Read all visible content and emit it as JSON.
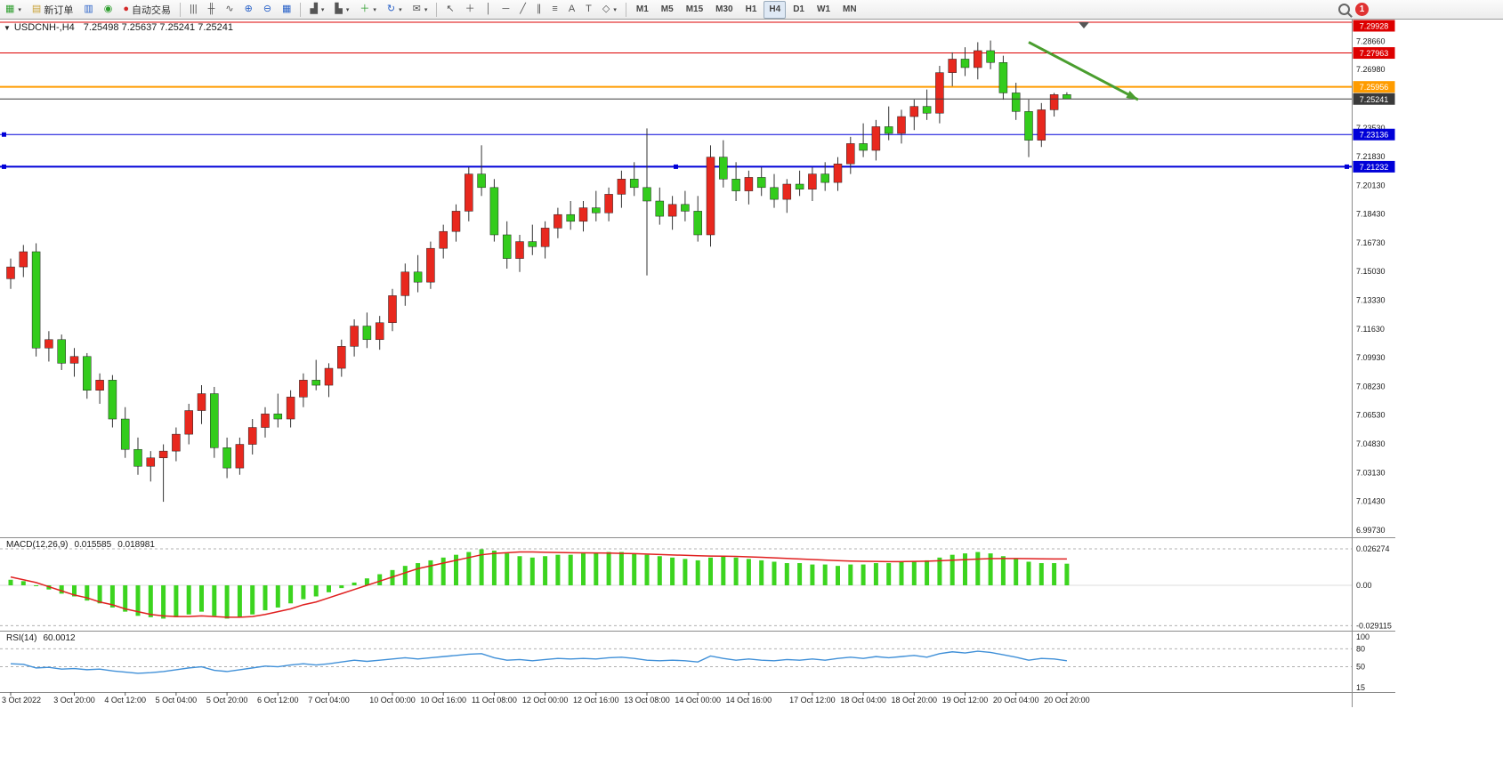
{
  "toolbar": {
    "new_order_label": "新订单",
    "auto_trading_label": "自动交易",
    "timeframes": [
      "M1",
      "M5",
      "M15",
      "M30",
      "H1",
      "H4",
      "D1",
      "W1",
      "MN"
    ],
    "active_timeframe": "H4",
    "notification_count": "1"
  },
  "chart": {
    "dropdown_glyph": "▼",
    "title": "USDCNH-,H4",
    "ohlc_text": "7.25498 7.25637 7.25241 7.25241"
  },
  "indicators": {
    "macd_label": "MACD(12,26,9)",
    "macd_value_main": "0.015585",
    "macd_value_signal": "0.018981",
    "rsi_label": "RSI(14)",
    "rsi_value": "60.0012"
  },
  "colors": {
    "up": "#e8281e",
    "down": "#33cc1c",
    "wick": "#333333",
    "macd_hist": "#3cd41f",
    "macd_signal": "#e02020",
    "rsi_line": "#4090d8",
    "arrow": "#4a9e2f",
    "line_red": "#dd0000",
    "line_orange": "#ff9c00",
    "line_blue": "#0000d8",
    "current_price": "#3a3a3a"
  },
  "chart_data": {
    "type": "candlestick",
    "symbol": "USDCNH-",
    "timeframe": "H4",
    "ohlc_current": {
      "open": 7.25498,
      "high": 7.25637,
      "low": 7.25241,
      "close": 7.25241
    },
    "ylim": [
      6.993,
      7.2994
    ],
    "candles": [
      [
        7.146,
        7.158,
        7.14,
        7.153
      ],
      [
        7.153,
        7.166,
        7.147,
        7.162
      ],
      [
        7.162,
        7.167,
        7.1,
        7.105
      ],
      [
        7.105,
        7.115,
        7.097,
        7.11
      ],
      [
        7.11,
        7.113,
        7.092,
        7.096
      ],
      [
        7.096,
        7.105,
        7.088,
        7.1
      ],
      [
        7.1,
        7.102,
        7.075,
        7.08
      ],
      [
        7.08,
        7.09,
        7.072,
        7.086
      ],
      [
        7.086,
        7.089,
        7.058,
        7.063
      ],
      [
        7.063,
        7.07,
        7.04,
        7.045
      ],
      [
        7.045,
        7.052,
        7.03,
        7.035
      ],
      [
        7.035,
        7.044,
        7.026,
        7.04
      ],
      [
        7.04,
        7.048,
        7.014,
        7.044
      ],
      [
        7.044,
        7.058,
        7.038,
        7.054
      ],
      [
        7.054,
        7.072,
        7.048,
        7.068
      ],
      [
        7.068,
        7.083,
        7.06,
        7.078
      ],
      [
        7.078,
        7.082,
        7.04,
        7.046
      ],
      [
        7.046,
        7.052,
        7.028,
        7.034
      ],
      [
        7.034,
        7.052,
        7.03,
        7.048
      ],
      [
        7.048,
        7.063,
        7.042,
        7.058
      ],
      [
        7.058,
        7.07,
        7.052,
        7.066
      ],
      [
        7.066,
        7.078,
        7.058,
        7.063
      ],
      [
        7.063,
        7.08,
        7.058,
        7.076
      ],
      [
        7.076,
        7.09,
        7.07,
        7.086
      ],
      [
        7.086,
        7.098,
        7.08,
        7.083
      ],
      [
        7.083,
        7.096,
        7.076,
        7.093
      ],
      [
        7.093,
        7.11,
        7.088,
        7.106
      ],
      [
        7.106,
        7.122,
        7.1,
        7.118
      ],
      [
        7.118,
        7.126,
        7.105,
        7.11
      ],
      [
        7.11,
        7.124,
        7.104,
        7.12
      ],
      [
        7.12,
        7.14,
        7.115,
        7.136
      ],
      [
        7.136,
        7.155,
        7.13,
        7.15
      ],
      [
        7.15,
        7.16,
        7.138,
        7.144
      ],
      [
        7.144,
        7.168,
        7.14,
        7.164
      ],
      [
        7.164,
        7.178,
        7.158,
        7.174
      ],
      [
        7.174,
        7.19,
        7.168,
        7.186
      ],
      [
        7.186,
        7.212,
        7.18,
        7.208
      ],
      [
        7.208,
        7.225,
        7.195,
        7.2
      ],
      [
        7.2,
        7.205,
        7.168,
        7.172
      ],
      [
        7.172,
        7.18,
        7.152,
        7.158
      ],
      [
        7.158,
        7.172,
        7.15,
        7.168
      ],
      [
        7.168,
        7.178,
        7.16,
        7.165
      ],
      [
        7.165,
        7.18,
        7.158,
        7.176
      ],
      [
        7.176,
        7.188,
        7.17,
        7.184
      ],
      [
        7.184,
        7.192,
        7.175,
        7.18
      ],
      [
        7.18,
        7.192,
        7.174,
        7.188
      ],
      [
        7.188,
        7.198,
        7.18,
        7.185
      ],
      [
        7.185,
        7.2,
        7.18,
        7.196
      ],
      [
        7.196,
        7.21,
        7.188,
        7.205
      ],
      [
        7.205,
        7.215,
        7.195,
        7.2
      ],
      [
        7.2,
        7.235,
        7.148,
        7.192
      ],
      [
        7.192,
        7.2,
        7.178,
        7.183
      ],
      [
        7.183,
        7.195,
        7.175,
        7.19
      ],
      [
        7.19,
        7.198,
        7.18,
        7.186
      ],
      [
        7.186,
        7.195,
        7.168,
        7.172
      ],
      [
        7.172,
        7.225,
        7.165,
        7.218
      ],
      [
        7.218,
        7.228,
        7.2,
        7.205
      ],
      [
        7.205,
        7.215,
        7.192,
        7.198
      ],
      [
        7.198,
        7.21,
        7.19,
        7.206
      ],
      [
        7.206,
        7.212,
        7.195,
        7.2
      ],
      [
        7.2,
        7.208,
        7.188,
        7.193
      ],
      [
        7.193,
        7.205,
        7.185,
        7.202
      ],
      [
        7.202,
        7.21,
        7.195,
        7.199
      ],
      [
        7.199,
        7.212,
        7.192,
        7.208
      ],
      [
        7.208,
        7.215,
        7.198,
        7.203
      ],
      [
        7.203,
        7.218,
        7.198,
        7.214
      ],
      [
        7.214,
        7.23,
        7.208,
        7.226
      ],
      [
        7.226,
        7.238,
        7.218,
        7.222
      ],
      [
        7.222,
        7.24,
        7.216,
        7.236
      ],
      [
        7.236,
        7.248,
        7.228,
        7.232
      ],
      [
        7.232,
        7.246,
        7.226,
        7.242
      ],
      [
        7.242,
        7.252,
        7.234,
        7.248
      ],
      [
        7.248,
        7.258,
        7.24,
        7.244
      ],
      [
        7.244,
        7.272,
        7.238,
        7.268
      ],
      [
        7.268,
        7.28,
        7.26,
        7.276
      ],
      [
        7.276,
        7.283,
        7.266,
        7.271
      ],
      [
        7.271,
        7.286,
        7.264,
        7.281
      ],
      [
        7.281,
        7.287,
        7.27,
        7.274
      ],
      [
        7.274,
        7.278,
        7.252,
        7.256
      ],
      [
        7.256,
        7.262,
        7.24,
        7.245
      ],
      [
        7.245,
        7.252,
        7.218,
        7.228
      ],
      [
        7.228,
        7.25,
        7.224,
        7.246
      ],
      [
        7.246,
        7.256,
        7.242,
        7.25498
      ],
      [
        7.25498,
        7.25637,
        7.25241,
        7.25241
      ]
    ],
    "hlines": [
      {
        "price": 7.29928,
        "label": "7.29928",
        "color": "#dd0000",
        "width": 1
      },
      {
        "price": 7.27963,
        "label": "7.27963",
        "color": "#dd0000",
        "width": 1
      },
      {
        "price": 7.25956,
        "label": "7.25956",
        "color": "#ff9c00",
        "width": 2
      },
      {
        "price": 7.25241,
        "label": "7.25241",
        "color": "#3a3a3a",
        "width": 1,
        "current": true
      },
      {
        "price": 7.23136,
        "label": "7.23136",
        "color": "#0000d8",
        "width": 1,
        "handles": "left"
      },
      {
        "price": 7.21232,
        "label": "7.21232",
        "color": "#0000d8",
        "width": 2,
        "handles": "full"
      }
    ],
    "arrow": {
      "from_bar": 80,
      "from_price": 7.286,
      "to_bar": 88.6,
      "to_price": 7.252,
      "color": "#4a9e2f"
    },
    "price_ticks": [
      "7.28660",
      "7.26980",
      "7.23530",
      "7.21830",
      "7.20130",
      "7.18430",
      "7.16730",
      "7.15030",
      "7.13330",
      "7.11630",
      "7.09930",
      "7.08230",
      "7.06530",
      "7.04830",
      "7.03130",
      "7.01430",
      "6.99730"
    ],
    "macd": {
      "histogram": [
        0.004,
        0.003,
        0.0,
        -0.003,
        -0.006,
        -0.008,
        -0.011,
        -0.013,
        -0.016,
        -0.019,
        -0.022,
        -0.023,
        -0.024,
        -0.023,
        -0.021,
        -0.019,
        -0.022,
        -0.024,
        -0.023,
        -0.021,
        -0.018,
        -0.016,
        -0.013,
        -0.01,
        -0.008,
        -0.005,
        -0.002,
        0.002,
        0.005,
        0.008,
        0.011,
        0.014,
        0.016,
        0.018,
        0.02,
        0.022,
        0.024,
        0.026,
        0.025,
        0.023,
        0.021,
        0.02,
        0.021,
        0.022,
        0.022,
        0.023,
        0.023,
        0.024,
        0.024,
        0.023,
        0.022,
        0.021,
        0.02,
        0.019,
        0.018,
        0.02,
        0.021,
        0.02,
        0.019,
        0.018,
        0.017,
        0.016,
        0.016,
        0.015,
        0.015,
        0.014,
        0.015,
        0.015,
        0.016,
        0.016,
        0.017,
        0.017,
        0.018,
        0.02,
        0.022,
        0.023,
        0.024,
        0.023,
        0.021,
        0.019,
        0.017,
        0.016,
        0.016,
        0.015585
      ],
      "signal": [
        0.006,
        0.004,
        0.002,
        -0.001,
        -0.004,
        -0.007,
        -0.009,
        -0.012,
        -0.014,
        -0.017,
        -0.019,
        -0.021,
        -0.022,
        -0.0225,
        -0.0225,
        -0.022,
        -0.0225,
        -0.023,
        -0.023,
        -0.0225,
        -0.021,
        -0.019,
        -0.017,
        -0.014,
        -0.012,
        -0.009,
        -0.006,
        -0.003,
        0.0,
        0.003,
        0.006,
        0.009,
        0.012,
        0.014,
        0.016,
        0.018,
        0.02,
        0.022,
        0.023,
        0.0235,
        0.024,
        0.024,
        0.0238,
        0.0236,
        0.0235,
        0.0234,
        0.0233,
        0.0232,
        0.023,
        0.0228,
        0.0225,
        0.0222,
        0.0219,
        0.0216,
        0.0213,
        0.0211,
        0.021,
        0.0208,
        0.0205,
        0.0202,
        0.0198,
        0.0194,
        0.019,
        0.0186,
        0.0182,
        0.0178,
        0.0175,
        0.0173,
        0.0172,
        0.0171,
        0.0171,
        0.0172,
        0.0174,
        0.0177,
        0.0181,
        0.0185,
        0.0189,
        0.0192,
        0.0193,
        0.0193,
        0.0192,
        0.0191,
        0.019,
        0.018981
      ],
      "ticks": [
        {
          "label": "0.026274",
          "value": 0.026274
        },
        {
          "label": "0.00",
          "value": 0
        },
        {
          "label": "-0.029115",
          "value": -0.029115
        }
      ]
    },
    "rsi": {
      "values": [
        55,
        54,
        48,
        49,
        46,
        47,
        45,
        46,
        43,
        41,
        39,
        40,
        42,
        45,
        48,
        50,
        44,
        42,
        45,
        48,
        51,
        50,
        53,
        55,
        53,
        55,
        58,
        61,
        59,
        61,
        63,
        65,
        63,
        65,
        67,
        69,
        71,
        72,
        65,
        61,
        62,
        60,
        62,
        64,
        63,
        64,
        63,
        65,
        66,
        64,
        61,
        60,
        61,
        60,
        58,
        68,
        64,
        61,
        63,
        61,
        60,
        62,
        61,
        63,
        61,
        64,
        66,
        64,
        67,
        65,
        67,
        69,
        66,
        72,
        75,
        73,
        76,
        74,
        70,
        66,
        61,
        64,
        63,
        60.0012
      ],
      "levels": [
        80,
        50
      ],
      "ticks": [
        {
          "label": "100",
          "value": 100
        },
        {
          "label": "80",
          "value": 80
        },
        {
          "label": "50",
          "value": 50
        },
        {
          "label": "15",
          "value": 15
        }
      ]
    },
    "time_labels": [
      {
        "text": "3 Oct 2022",
        "bar": 0
      },
      {
        "text": "3 Oct 20:00",
        "bar": 5
      },
      {
        "text": "4 Oct 12:00",
        "bar": 9
      },
      {
        "text": "5 Oct 04:00",
        "bar": 13
      },
      {
        "text": "5 Oct 20:00",
        "bar": 17
      },
      {
        "text": "6 Oct 12:00",
        "bar": 21
      },
      {
        "text": "7 Oct 04:00",
        "bar": 25
      },
      {
        "text": "10 Oct 00:00",
        "bar": 30
      },
      {
        "text": "10 Oct 16:00",
        "bar": 34
      },
      {
        "text": "11 Oct 08:00",
        "bar": 38
      },
      {
        "text": "12 Oct 00:00",
        "bar": 42
      },
      {
        "text": "12 Oct 16:00",
        "bar": 46
      },
      {
        "text": "13 Oct 08:00",
        "bar": 50
      },
      {
        "text": "14 Oct 00:00",
        "bar": 54
      },
      {
        "text": "14 Oct 16:00",
        "bar": 58
      },
      {
        "text": "17 Oct 12:00",
        "bar": 63
      },
      {
        "text": "18 Oct 04:00",
        "bar": 67
      },
      {
        "text": "18 Oct 20:00",
        "bar": 71
      },
      {
        "text": "19 Oct 12:00",
        "bar": 75
      },
      {
        "text": "20 Oct 04:00",
        "bar": 79
      },
      {
        "text": "20 Oct 20:00",
        "bar": 83
      }
    ]
  }
}
